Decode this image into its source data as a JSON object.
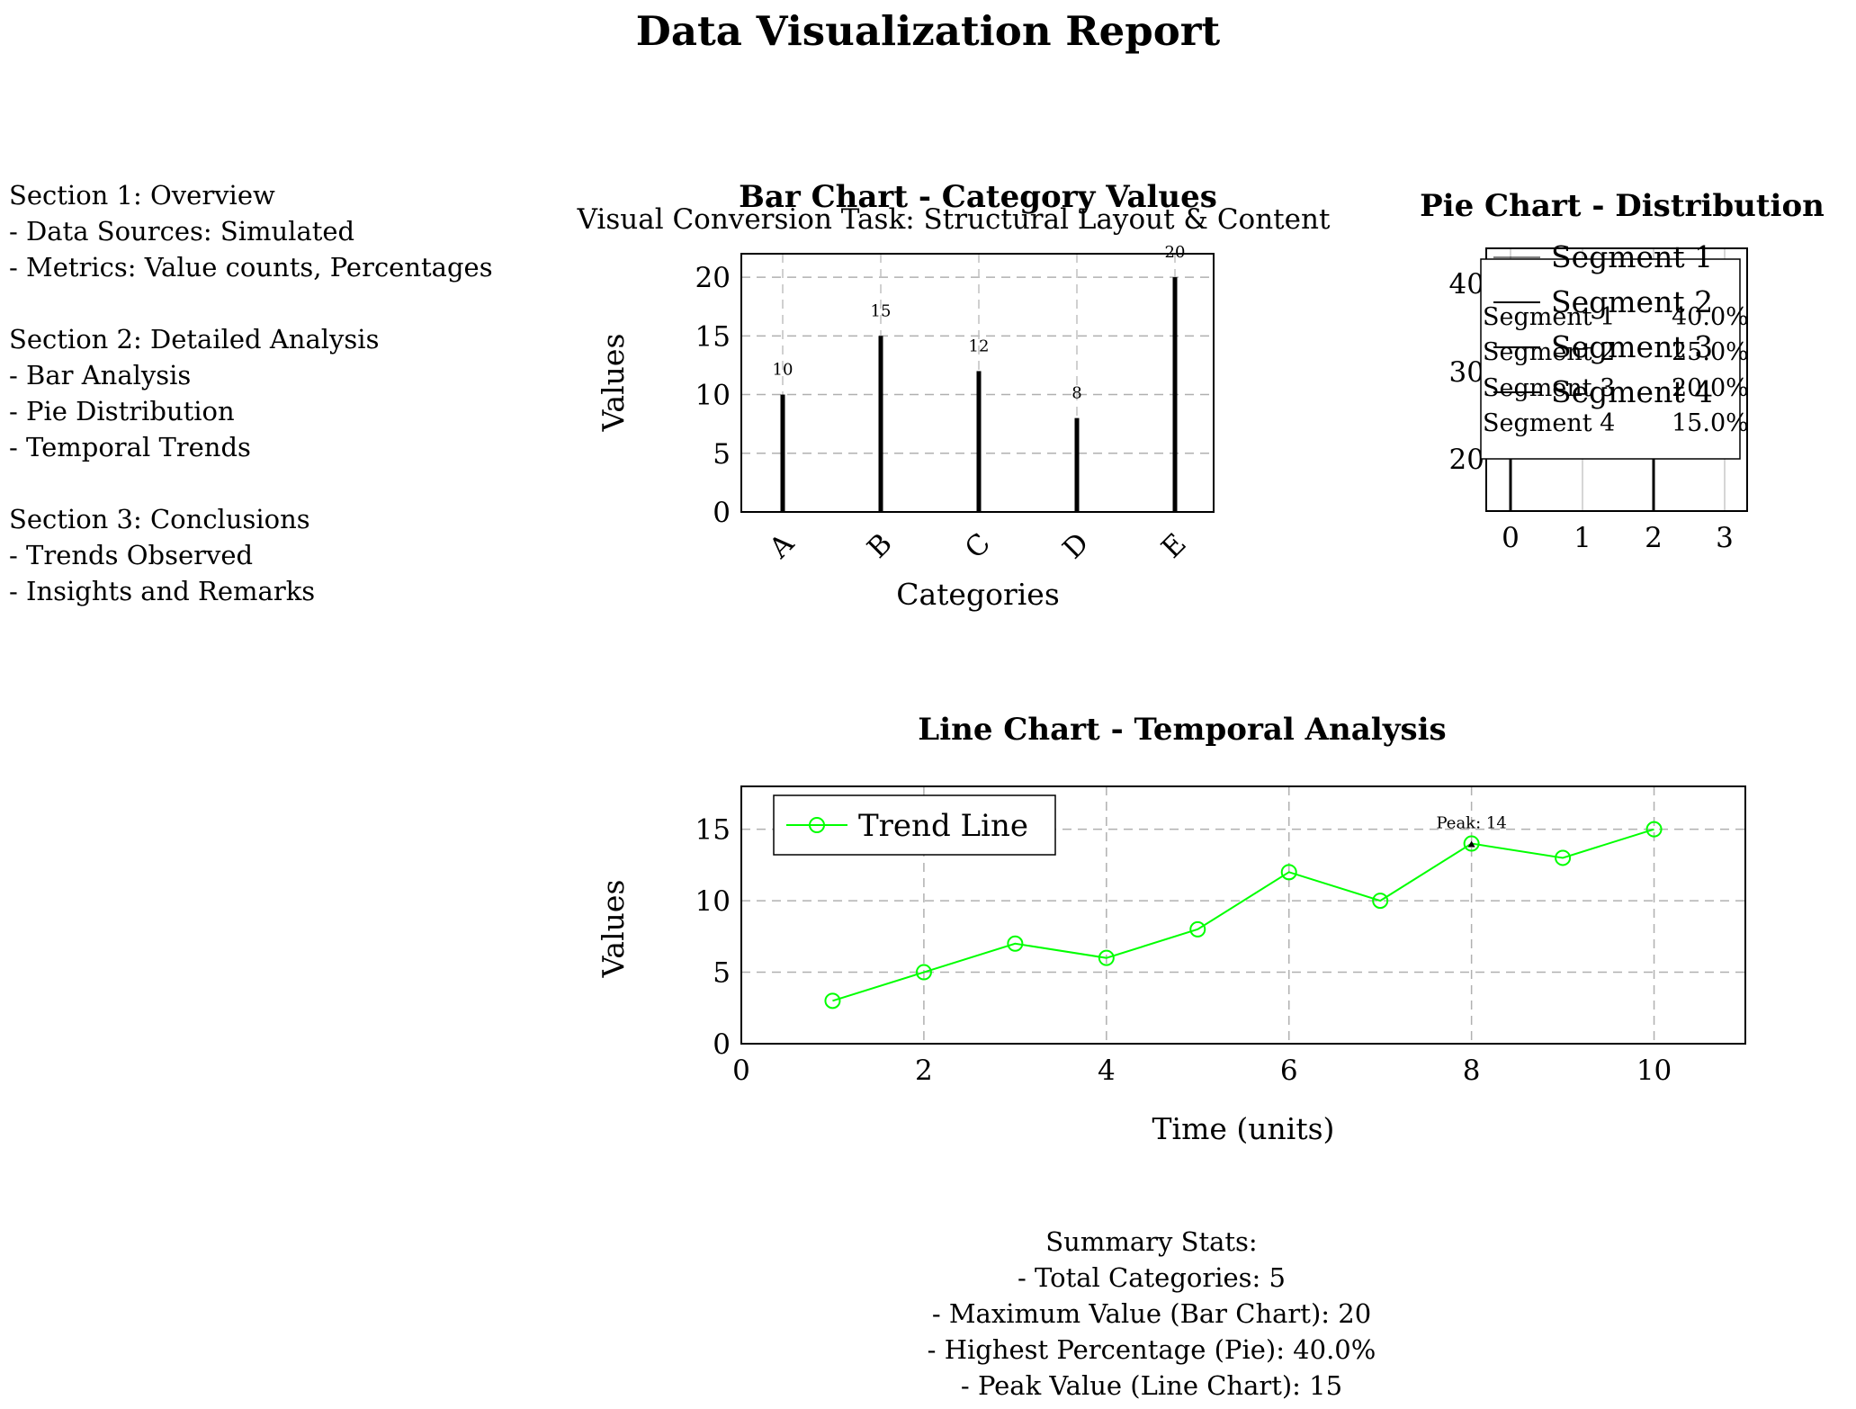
{
  "report": {
    "title": "Data Visualization Report",
    "subtitle": "Visual Conversion Task: Structural Layout & Content"
  },
  "left_panel": {
    "lines": [
      "Section 1: Overview",
      "- Data Sources: Simulated",
      "- Metrics: Value counts, Percentages",
      "",
      "Section 2: Detailed Analysis",
      "- Bar Analysis",
      "- Pie Distribution",
      "- Temporal Trends",
      "",
      "Section 3: Conclusions",
      "- Trends Observed",
      "- Insights and Remarks"
    ]
  },
  "summary": {
    "lines": [
      "Summary Stats:",
      "- Total Categories: 5",
      "- Maximum Value (Bar Chart): 20",
      "- Highest Percentage (Pie): 40.0%",
      "- Peak Value (Line Chart): 15"
    ]
  },
  "chart_data": [
    {
      "type": "bar",
      "title": "Bar Chart - Category Values",
      "xlabel": "Categories",
      "ylabel": "Values",
      "categories": [
        "A",
        "B",
        "C",
        "D",
        "E"
      ],
      "values": [
        10,
        15,
        12,
        8,
        20
      ],
      "data_labels": [
        "10",
        "15",
        "12",
        "8",
        "20"
      ],
      "ylim": [
        0,
        22
      ],
      "yticks": [
        0,
        5,
        10,
        15,
        20
      ],
      "grid": true,
      "bar_color": "#000000"
    },
    {
      "type": "pie",
      "title": "Pie Chart - Distribution",
      "labels": [
        "Segment 1",
        "Segment 2",
        "Segment 3",
        "Segment 4"
      ],
      "values": [
        40.0,
        25.0,
        20.0,
        15.0
      ],
      "percent_labels": [
        "40.0%",
        "25.0%",
        "20.0%",
        "15.0%"
      ],
      "legend": "top-right",
      "xticks": [
        "0",
        "1",
        "2",
        "3"
      ],
      "yticks_visible": [
        "40",
        "30",
        "20"
      ]
    },
    {
      "type": "line",
      "title": "Line Chart - Temporal Analysis",
      "xlabel": "Time (units)",
      "ylabel": "Values",
      "series": [
        {
          "name": "Trend Line",
          "x": [
            1,
            2,
            3,
            4,
            5,
            6,
            7,
            8,
            9,
            10
          ],
          "values": [
            3,
            5,
            7,
            6,
            8,
            12,
            10,
            14,
            13,
            15
          ],
          "color": "#00ff00",
          "marker": "circle"
        }
      ],
      "xlim": [
        0,
        11
      ],
      "ylim": [
        0,
        18
      ],
      "xticks": [
        0,
        2,
        4,
        6,
        8,
        10
      ],
      "yticks": [
        0,
        5,
        10,
        15
      ],
      "grid": true,
      "legend": "top-left",
      "annotation": {
        "text": "Peak: 14",
        "x": 8,
        "y": 14
      }
    }
  ]
}
